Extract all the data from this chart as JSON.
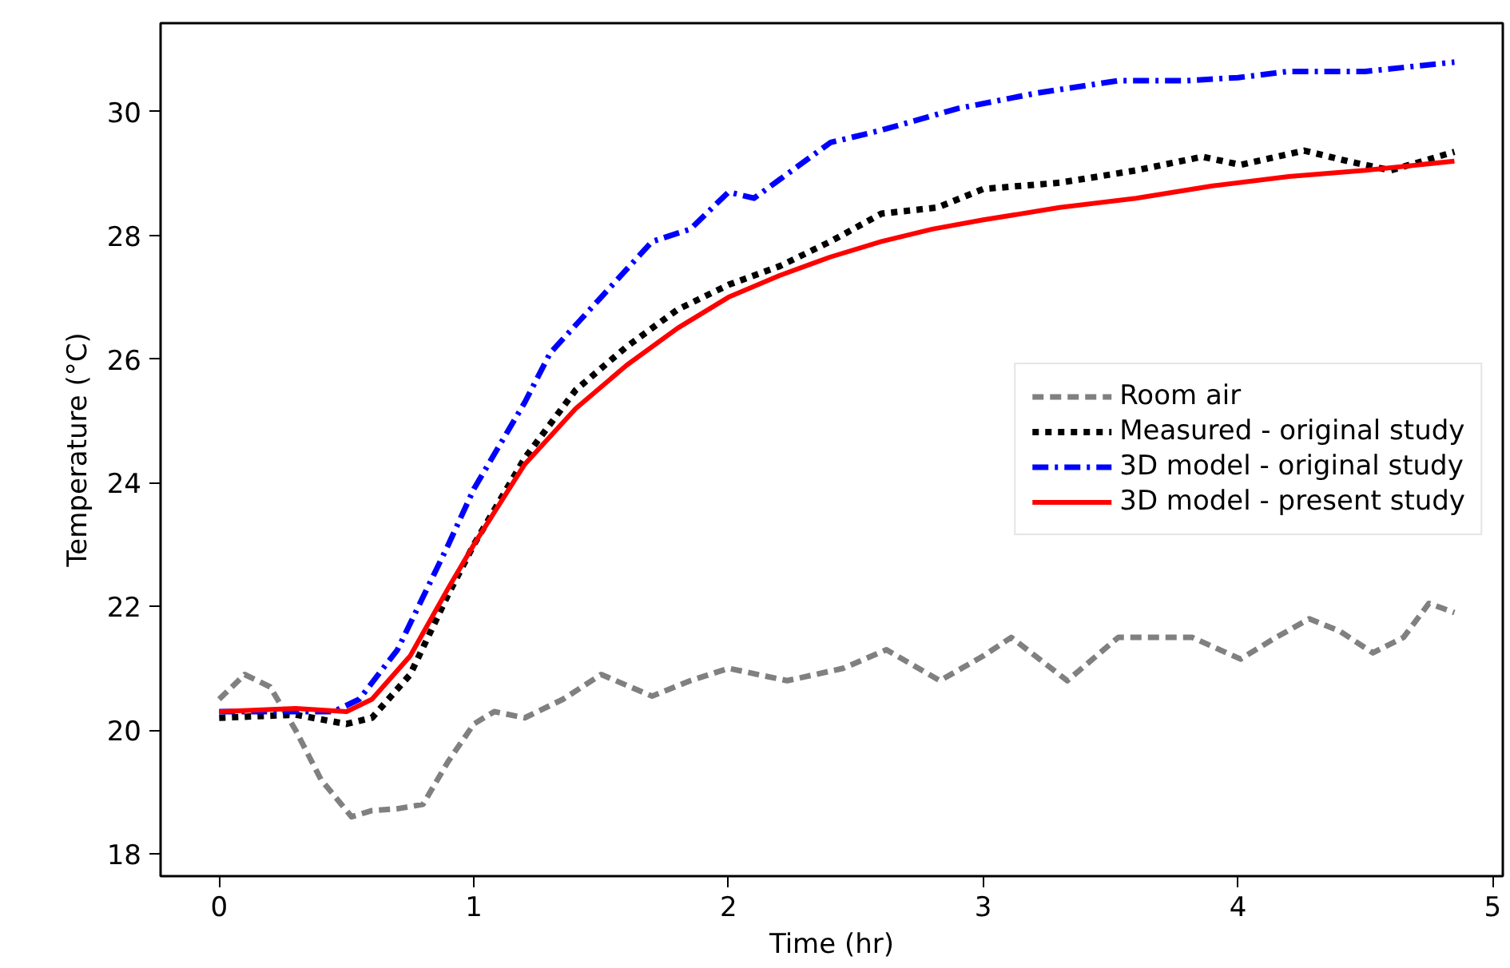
{
  "chart_data": {
    "type": "line",
    "xlabel": "Time (hr)",
    "ylabel": "Temperature (°C)",
    "xlim": [
      -0.23,
      5.04
    ],
    "ylim": [
      17.64,
      31.43
    ],
    "xticks": [
      0,
      1,
      2,
      3,
      4,
      5
    ],
    "yticks": [
      18,
      20,
      22,
      24,
      26,
      28,
      30
    ],
    "grid": false,
    "legend": "right",
    "marker": "none",
    "series": [
      {
        "name": "Room air",
        "color": "#808080",
        "line_style": "dashed",
        "x": [
          0,
          0.1,
          0.2,
          0.3,
          0.4,
          0.52,
          0.6,
          0.7,
          0.8,
          0.9,
          1.0,
          1.08,
          1.2,
          1.35,
          1.5,
          1.7,
          1.85,
          2.0,
          2.23,
          2.45,
          2.62,
          2.83,
          3.0,
          3.11,
          3.33,
          3.53,
          3.82,
          4.01,
          4.15,
          4.28,
          4.4,
          4.53,
          4.65,
          4.75,
          4.85
        ],
        "values": [
          20.5,
          20.9,
          20.7,
          20.0,
          19.2,
          18.6,
          18.7,
          18.73,
          18.8,
          19.5,
          20.1,
          20.3,
          20.2,
          20.5,
          20.9,
          20.55,
          20.8,
          21.0,
          20.8,
          21.0,
          21.3,
          20.8,
          21.2,
          21.5,
          20.8,
          21.5,
          21.5,
          21.15,
          21.5,
          21.8,
          21.6,
          21.25,
          21.5,
          22.05,
          21.9
        ]
      },
      {
        "name": "Measured - original study",
        "color": "#000000",
        "line_style": "dotted",
        "x": [
          0,
          0.3,
          0.5,
          0.6,
          0.75,
          0.9,
          1.0,
          1.2,
          1.4,
          1.6,
          1.8,
          2.0,
          2.2,
          2.4,
          2.6,
          2.82,
          3.0,
          3.3,
          3.6,
          3.86,
          4.01,
          4.26,
          4.43,
          4.6,
          4.85
        ],
        "values": [
          20.2,
          20.25,
          20.1,
          20.2,
          20.9,
          22.2,
          23.0,
          24.4,
          25.5,
          26.2,
          26.8,
          27.2,
          27.5,
          27.9,
          28.35,
          28.45,
          28.75,
          28.85,
          29.05,
          29.27,
          29.14,
          29.37,
          29.2,
          29.05,
          29.35
        ]
      },
      {
        "name": "3D model - original study",
        "color": "#0000ff",
        "line_style": "dashdot",
        "x": [
          0,
          0.45,
          0.55,
          0.7,
          0.9,
          1.0,
          1.2,
          1.3,
          1.5,
          1.7,
          1.85,
          2.0,
          2.1,
          2.2,
          2.4,
          2.6,
          2.9,
          3.21,
          3.53,
          3.8,
          4.0,
          4.2,
          4.5,
          4.85
        ],
        "values": [
          20.3,
          20.3,
          20.5,
          21.3,
          23.0,
          23.9,
          25.3,
          26.1,
          27.0,
          27.9,
          28.1,
          28.7,
          28.6,
          28.9,
          29.5,
          29.7,
          30.05,
          30.3,
          30.5,
          30.5,
          30.55,
          30.65,
          30.65,
          30.8
        ]
      },
      {
        "name": "3D model - present study",
        "color": "#ff0000",
        "line_style": "solid",
        "x": [
          0,
          0.3,
          0.5,
          0.6,
          0.75,
          0.9,
          1.0,
          1.2,
          1.4,
          1.6,
          1.8,
          2.0,
          2.2,
          2.4,
          2.6,
          2.8,
          3.0,
          3.3,
          3.6,
          3.9,
          4.2,
          4.5,
          4.85
        ],
        "values": [
          20.3,
          20.35,
          20.3,
          20.5,
          21.2,
          22.3,
          23.0,
          24.3,
          25.2,
          25.9,
          26.5,
          27.0,
          27.35,
          27.65,
          27.9,
          28.1,
          28.25,
          28.45,
          28.6,
          28.8,
          28.95,
          29.05,
          29.2
        ]
      }
    ]
  }
}
